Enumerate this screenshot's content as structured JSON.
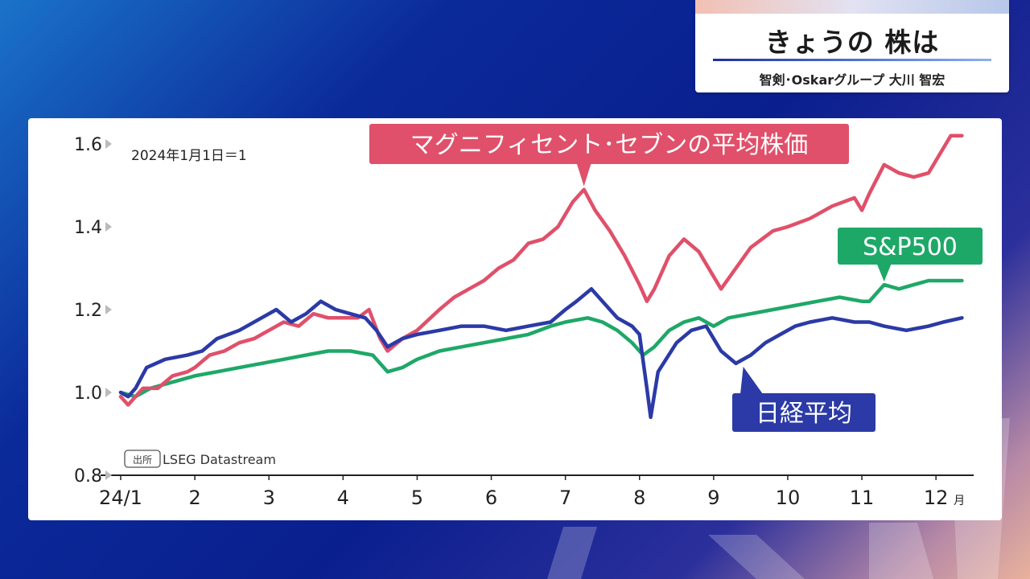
{
  "header": {
    "title": "きょうの 株は",
    "subtitle": "智剣･Oskarグループ 大川 智宏"
  },
  "colors": {
    "magnificent_seven": "#e0506a",
    "sp500": "#1ea868",
    "nikkei": "#2b3aa6"
  },
  "chart_data": {
    "type": "line",
    "base_note": "2024年1月1日＝1",
    "source_tag": "出所",
    "source": "LSEG Datastream",
    "month_unit": "月",
    "ylim": [
      0.8,
      1.6
    ],
    "yticks": [
      {
        "value": 0.8,
        "label": "0.8"
      },
      {
        "value": 1.0,
        "label": "1.0"
      },
      {
        "value": 1.2,
        "label": "1.2"
      },
      {
        "value": 1.4,
        "label": "1.4"
      },
      {
        "value": 1.6,
        "label": "1.6"
      }
    ],
    "xlim": [
      1,
      12.4
    ],
    "xticks": [
      {
        "value": 1,
        "label": "24/1"
      },
      {
        "value": 2,
        "label": "2"
      },
      {
        "value": 3,
        "label": "3"
      },
      {
        "value": 4,
        "label": "4"
      },
      {
        "value": 5,
        "label": "5"
      },
      {
        "value": 6,
        "label": "6"
      },
      {
        "value": 7,
        "label": "7"
      },
      {
        "value": 8,
        "label": "8"
      },
      {
        "value": 9,
        "label": "9"
      },
      {
        "value": 10,
        "label": "10"
      },
      {
        "value": 11,
        "label": "11"
      },
      {
        "value": 12,
        "label": "12"
      }
    ],
    "series": [
      {
        "key": "magnificent_seven",
        "name": "マグニフィセント･セブンの平均株価",
        "callout_at": [
          7.25,
          1.49
        ],
        "points": [
          [
            1.0,
            0.99
          ],
          [
            1.1,
            0.97
          ],
          [
            1.2,
            0.99
          ],
          [
            1.3,
            1.01
          ],
          [
            1.5,
            1.01
          ],
          [
            1.7,
            1.04
          ],
          [
            1.9,
            1.05
          ],
          [
            2.0,
            1.06
          ],
          [
            2.2,
            1.09
          ],
          [
            2.4,
            1.1
          ],
          [
            2.6,
            1.12
          ],
          [
            2.8,
            1.13
          ],
          [
            3.0,
            1.15
          ],
          [
            3.2,
            1.17
          ],
          [
            3.4,
            1.16
          ],
          [
            3.6,
            1.19
          ],
          [
            3.8,
            1.18
          ],
          [
            4.0,
            1.18
          ],
          [
            4.2,
            1.18
          ],
          [
            4.35,
            1.2
          ],
          [
            4.5,
            1.13
          ],
          [
            4.6,
            1.1
          ],
          [
            4.8,
            1.13
          ],
          [
            5.0,
            1.15
          ],
          [
            5.3,
            1.2
          ],
          [
            5.5,
            1.23
          ],
          [
            5.7,
            1.25
          ],
          [
            5.9,
            1.27
          ],
          [
            6.1,
            1.3
          ],
          [
            6.3,
            1.32
          ],
          [
            6.5,
            1.36
          ],
          [
            6.7,
            1.37
          ],
          [
            6.9,
            1.4
          ],
          [
            7.1,
            1.46
          ],
          [
            7.25,
            1.49
          ],
          [
            7.4,
            1.44
          ],
          [
            7.6,
            1.39
          ],
          [
            7.8,
            1.33
          ],
          [
            8.0,
            1.26
          ],
          [
            8.1,
            1.22
          ],
          [
            8.2,
            1.25
          ],
          [
            8.4,
            1.33
          ],
          [
            8.6,
            1.37
          ],
          [
            8.8,
            1.34
          ],
          [
            9.0,
            1.28
          ],
          [
            9.1,
            1.25
          ],
          [
            9.3,
            1.3
          ],
          [
            9.5,
            1.35
          ],
          [
            9.8,
            1.39
          ],
          [
            10.0,
            1.4
          ],
          [
            10.3,
            1.42
          ],
          [
            10.6,
            1.45
          ],
          [
            10.9,
            1.47
          ],
          [
            11.0,
            1.44
          ],
          [
            11.1,
            1.48
          ],
          [
            11.3,
            1.55
          ],
          [
            11.5,
            1.53
          ],
          [
            11.7,
            1.52
          ],
          [
            11.9,
            1.53
          ],
          [
            12.1,
            1.59
          ],
          [
            12.2,
            1.62
          ],
          [
            12.35,
            1.62
          ]
        ]
      },
      {
        "key": "sp500",
        "name": "S&P500",
        "callout_at": [
          11.3,
          1.26
        ],
        "points": [
          [
            1.0,
            1.0
          ],
          [
            1.2,
            0.99
          ],
          [
            1.4,
            1.01
          ],
          [
            1.6,
            1.02
          ],
          [
            1.8,
            1.03
          ],
          [
            2.0,
            1.04
          ],
          [
            2.3,
            1.05
          ],
          [
            2.6,
            1.06
          ],
          [
            2.9,
            1.07
          ],
          [
            3.2,
            1.08
          ],
          [
            3.5,
            1.09
          ],
          [
            3.8,
            1.1
          ],
          [
            4.1,
            1.1
          ],
          [
            4.4,
            1.09
          ],
          [
            4.6,
            1.05
          ],
          [
            4.8,
            1.06
          ],
          [
            5.0,
            1.08
          ],
          [
            5.3,
            1.1
          ],
          [
            5.6,
            1.11
          ],
          [
            5.9,
            1.12
          ],
          [
            6.2,
            1.13
          ],
          [
            6.5,
            1.14
          ],
          [
            6.8,
            1.16
          ],
          [
            7.0,
            1.17
          ],
          [
            7.3,
            1.18
          ],
          [
            7.5,
            1.17
          ],
          [
            7.7,
            1.15
          ],
          [
            7.9,
            1.12
          ],
          [
            8.05,
            1.09
          ],
          [
            8.2,
            1.11
          ],
          [
            8.4,
            1.15
          ],
          [
            8.6,
            1.17
          ],
          [
            8.8,
            1.18
          ],
          [
            9.0,
            1.16
          ],
          [
            9.2,
            1.18
          ],
          [
            9.5,
            1.19
          ],
          [
            9.8,
            1.2
          ],
          [
            10.1,
            1.21
          ],
          [
            10.4,
            1.22
          ],
          [
            10.7,
            1.23
          ],
          [
            11.0,
            1.22
          ],
          [
            11.1,
            1.22
          ],
          [
            11.3,
            1.26
          ],
          [
            11.5,
            1.25
          ],
          [
            11.7,
            1.26
          ],
          [
            11.9,
            1.27
          ],
          [
            12.1,
            1.27
          ],
          [
            12.35,
            1.27
          ]
        ]
      },
      {
        "key": "nikkei",
        "name": "日経平均",
        "callout_at": [
          9.4,
          1.07
        ],
        "points": [
          [
            1.0,
            1.0
          ],
          [
            1.1,
            0.99
          ],
          [
            1.2,
            1.01
          ],
          [
            1.35,
            1.06
          ],
          [
            1.6,
            1.08
          ],
          [
            1.9,
            1.09
          ],
          [
            2.1,
            1.1
          ],
          [
            2.3,
            1.13
          ],
          [
            2.6,
            1.15
          ],
          [
            2.9,
            1.18
          ],
          [
            3.1,
            1.2
          ],
          [
            3.3,
            1.17
          ],
          [
            3.5,
            1.19
          ],
          [
            3.7,
            1.22
          ],
          [
            3.9,
            1.2
          ],
          [
            4.1,
            1.19
          ],
          [
            4.3,
            1.18
          ],
          [
            4.45,
            1.15
          ],
          [
            4.6,
            1.11
          ],
          [
            4.8,
            1.13
          ],
          [
            5.0,
            1.14
          ],
          [
            5.3,
            1.15
          ],
          [
            5.6,
            1.16
          ],
          [
            5.9,
            1.16
          ],
          [
            6.2,
            1.15
          ],
          [
            6.5,
            1.16
          ],
          [
            6.8,
            1.17
          ],
          [
            7.0,
            1.2
          ],
          [
            7.15,
            1.22
          ],
          [
            7.35,
            1.25
          ],
          [
            7.5,
            1.22
          ],
          [
            7.7,
            1.18
          ],
          [
            7.9,
            1.16
          ],
          [
            8.0,
            1.14
          ],
          [
            8.1,
            1.01
          ],
          [
            8.15,
            0.94
          ],
          [
            8.25,
            1.05
          ],
          [
            8.5,
            1.12
          ],
          [
            8.7,
            1.15
          ],
          [
            8.9,
            1.16
          ],
          [
            9.1,
            1.1
          ],
          [
            9.3,
            1.07
          ],
          [
            9.5,
            1.09
          ],
          [
            9.7,
            1.12
          ],
          [
            9.9,
            1.14
          ],
          [
            10.1,
            1.16
          ],
          [
            10.3,
            1.17
          ],
          [
            10.6,
            1.18
          ],
          [
            10.9,
            1.17
          ],
          [
            11.1,
            1.17
          ],
          [
            11.3,
            1.16
          ],
          [
            11.6,
            1.15
          ],
          [
            11.9,
            1.16
          ],
          [
            12.1,
            1.17
          ],
          [
            12.35,
            1.18
          ]
        ]
      }
    ]
  }
}
